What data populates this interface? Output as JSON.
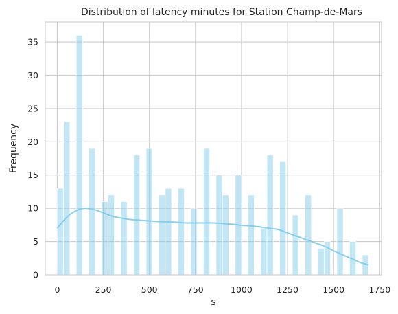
{
  "chart_data": {
    "type": "bar",
    "title": "Distribution of latency minutes for Station Champ-de-Mars",
    "xlabel": "s",
    "ylabel": "Frequency",
    "xlim": [
      -65,
      1760
    ],
    "ylim": [
      0,
      38
    ],
    "xticks": [
      0,
      250,
      500,
      750,
      1000,
      1250,
      1500,
      1750
    ],
    "yticks": [
      0,
      5,
      10,
      15,
      20,
      25,
      30,
      35
    ],
    "grid": true,
    "bar_color": "#87ceeb",
    "bin_width": 34.5,
    "bins": [
      {
        "x0": -0.5,
        "value": 13
      },
      {
        "x0": 34,
        "value": 23
      },
      {
        "x0": 103,
        "value": 36
      },
      {
        "x0": 172,
        "value": 19
      },
      {
        "x0": 241,
        "value": 11
      },
      {
        "x0": 275.5,
        "value": 12
      },
      {
        "x0": 344.5,
        "value": 11
      },
      {
        "x0": 413.5,
        "value": 18
      },
      {
        "x0": 482.5,
        "value": 19
      },
      {
        "x0": 551.5,
        "value": 12
      },
      {
        "x0": 586,
        "value": 13
      },
      {
        "x0": 655,
        "value": 13
      },
      {
        "x0": 724,
        "value": 10
      },
      {
        "x0": 793,
        "value": 19
      },
      {
        "x0": 862,
        "value": 15
      },
      {
        "x0": 896.5,
        "value": 12
      },
      {
        "x0": 965.5,
        "value": 15
      },
      {
        "x0": 1034.5,
        "value": 12
      },
      {
        "x0": 1103.5,
        "value": 7
      },
      {
        "x0": 1138,
        "value": 18
      },
      {
        "x0": 1207,
        "value": 17
      },
      {
        "x0": 1276,
        "value": 9
      },
      {
        "x0": 1345,
        "value": 12
      },
      {
        "x0": 1414,
        "value": 4
      },
      {
        "x0": 1448.5,
        "value": 5
      },
      {
        "x0": 1517.5,
        "value": 10
      },
      {
        "x0": 1586.5,
        "value": 5
      },
      {
        "x0": 1655.5,
        "value": 3
      }
    ],
    "kde": {
      "x": [
        0,
        50,
        100,
        150,
        200,
        250,
        300,
        350,
        400,
        450,
        500,
        550,
        600,
        650,
        700,
        750,
        800,
        850,
        900,
        950,
        1000,
        1050,
        1100,
        1150,
        1200,
        1250,
        1300,
        1350,
        1400,
        1450,
        1500,
        1550,
        1600,
        1650,
        1690
      ],
      "y": [
        7.0,
        8.6,
        9.6,
        10.0,
        9.8,
        9.3,
        8.8,
        8.5,
        8.3,
        8.2,
        8.1,
        8.0,
        7.95,
        7.9,
        7.8,
        7.8,
        7.8,
        7.8,
        7.7,
        7.6,
        7.45,
        7.35,
        7.2,
        7.0,
        6.8,
        6.3,
        5.8,
        5.3,
        4.8,
        4.3,
        3.6,
        3.0,
        2.4,
        1.8,
        1.5
      ]
    }
  }
}
